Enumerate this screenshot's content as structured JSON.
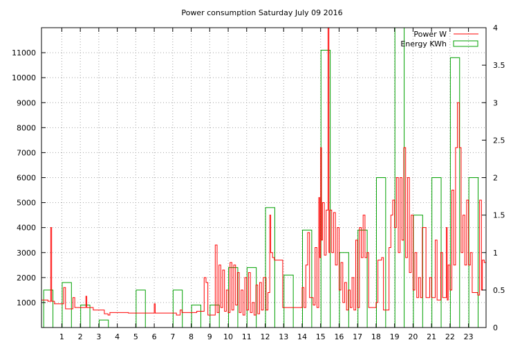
{
  "chart_data": {
    "type": "line",
    "title": "Power consumption Saturday July 09 2016",
    "x": {
      "label": "",
      "range": [
        -0.1,
        23.95
      ],
      "ticks": [
        1,
        2,
        3,
        4,
        5,
        6,
        7,
        8,
        9,
        10,
        11,
        12,
        13,
        14,
        15,
        16,
        17,
        18,
        19,
        20,
        21,
        22,
        23
      ]
    },
    "y_left": {
      "label": "",
      "range": [
        0,
        12000
      ],
      "ticks": [
        1000,
        2000,
        3000,
        4000,
        5000,
        6000,
        7000,
        8000,
        9000,
        10000,
        11000
      ]
    },
    "y_right": {
      "label": "",
      "range": [
        0,
        4
      ],
      "ticks": [
        "0",
        "0.5",
        "1",
        "1.5",
        "2",
        "2.5",
        "3",
        "3.5",
        "4"
      ]
    },
    "grid": true,
    "legend_position": "top-right",
    "series": [
      {
        "name": "Power W",
        "kind": "line",
        "axis": "left",
        "color": "#ff0000",
        "points": [
          [
            -0.1,
            1100
          ],
          [
            0.1,
            1100
          ],
          [
            0.25,
            1050
          ],
          [
            0.4,
            4000
          ],
          [
            0.45,
            1050
          ],
          [
            0.6,
            950
          ],
          [
            1.0,
            950
          ],
          [
            1.1,
            1600
          ],
          [
            1.2,
            750
          ],
          [
            1.5,
            750
          ],
          [
            1.6,
            1200
          ],
          [
            1.7,
            800
          ],
          [
            2.2,
            800
          ],
          [
            2.3,
            1250
          ],
          [
            2.35,
            800
          ],
          [
            2.6,
            800
          ],
          [
            2.7,
            700
          ],
          [
            3.2,
            700
          ],
          [
            3.3,
            550
          ],
          [
            3.5,
            500
          ],
          [
            3.6,
            600
          ],
          [
            4.5,
            600
          ],
          [
            4.6,
            580
          ],
          [
            5.9,
            580
          ],
          [
            6.0,
            950
          ],
          [
            6.05,
            580
          ],
          [
            7.0,
            580
          ],
          [
            7.2,
            500
          ],
          [
            7.4,
            700
          ],
          [
            7.5,
            600
          ],
          [
            8.0,
            600
          ],
          [
            8.3,
            650
          ],
          [
            8.6,
            650
          ],
          [
            8.7,
            2000
          ],
          [
            8.8,
            1800
          ],
          [
            8.9,
            500
          ],
          [
            9.2,
            500
          ],
          [
            9.3,
            3300
          ],
          [
            9.4,
            600
          ],
          [
            9.5,
            2500
          ],
          [
            9.6,
            800
          ],
          [
            9.7,
            2300
          ],
          [
            9.8,
            650
          ],
          [
            9.9,
            1500
          ],
          [
            10.0,
            600
          ],
          [
            10.1,
            2600
          ],
          [
            10.2,
            700
          ],
          [
            10.3,
            2500
          ],
          [
            10.4,
            900
          ],
          [
            10.5,
            2200
          ],
          [
            10.6,
            600
          ],
          [
            10.7,
            1500
          ],
          [
            10.8,
            500
          ],
          [
            10.9,
            2000
          ],
          [
            11.0,
            700
          ],
          [
            11.1,
            2200
          ],
          [
            11.2,
            600
          ],
          [
            11.3,
            1000
          ],
          [
            11.4,
            500
          ],
          [
            11.5,
            1700
          ],
          [
            11.6,
            550
          ],
          [
            11.7,
            1800
          ],
          [
            11.8,
            700
          ],
          [
            11.9,
            2000
          ],
          [
            12.05,
            700
          ],
          [
            12.15,
            1400
          ],
          [
            12.25,
            4500
          ],
          [
            12.3,
            3000
          ],
          [
            12.4,
            2800
          ],
          [
            12.5,
            2700
          ],
          [
            12.9,
            2700
          ],
          [
            12.95,
            800
          ],
          [
            13.9,
            800
          ],
          [
            14.0,
            1600
          ],
          [
            14.1,
            800
          ],
          [
            14.2,
            2500
          ],
          [
            14.3,
            3800
          ],
          [
            14.4,
            1200
          ],
          [
            14.6,
            900
          ],
          [
            14.7,
            3200
          ],
          [
            14.8,
            800
          ],
          [
            14.9,
            5200
          ],
          [
            14.95,
            2800
          ],
          [
            15.0,
            7200
          ],
          [
            15.05,
            3500
          ],
          [
            15.1,
            5000
          ],
          [
            15.2,
            2900
          ],
          [
            15.3,
            4700
          ],
          [
            15.4,
            12000
          ],
          [
            15.45,
            3000
          ],
          [
            15.5,
            4700
          ],
          [
            15.6,
            3000
          ],
          [
            15.7,
            4600
          ],
          [
            15.8,
            2500
          ],
          [
            15.9,
            4000
          ],
          [
            16.0,
            1500
          ],
          [
            16.1,
            2600
          ],
          [
            16.2,
            1000
          ],
          [
            16.3,
            1800
          ],
          [
            16.4,
            700
          ],
          [
            16.5,
            1500
          ],
          [
            16.6,
            800
          ],
          [
            16.7,
            2000
          ],
          [
            16.8,
            700
          ],
          [
            16.9,
            3500
          ],
          [
            17.0,
            800
          ],
          [
            17.1,
            4000
          ],
          [
            17.2,
            2800
          ],
          [
            17.3,
            4500
          ],
          [
            17.4,
            2800
          ],
          [
            17.5,
            3000
          ],
          [
            17.6,
            800
          ],
          [
            17.9,
            800
          ],
          [
            18.0,
            1000
          ],
          [
            18.1,
            2700
          ],
          [
            18.3,
            2800
          ],
          [
            18.4,
            700
          ],
          [
            18.6,
            700
          ],
          [
            18.7,
            3200
          ],
          [
            18.8,
            4500
          ],
          [
            18.9,
            5100
          ],
          [
            19.0,
            4000
          ],
          [
            19.1,
            6000
          ],
          [
            19.2,
            3000
          ],
          [
            19.3,
            6000
          ],
          [
            19.4,
            3500
          ],
          [
            19.5,
            7200
          ],
          [
            19.6,
            2800
          ],
          [
            19.7,
            6000
          ],
          [
            19.8,
            2200
          ],
          [
            19.9,
            4500
          ],
          [
            20.0,
            1500
          ],
          [
            20.1,
            3000
          ],
          [
            20.2,
            1200
          ],
          [
            20.3,
            2000
          ],
          [
            20.4,
            1200
          ],
          [
            20.5,
            4000
          ],
          [
            20.7,
            1200
          ],
          [
            20.9,
            2000
          ],
          [
            21.0,
            1200
          ],
          [
            21.2,
            3500
          ],
          [
            21.3,
            1100
          ],
          [
            21.5,
            3000
          ],
          [
            21.6,
            1200
          ],
          [
            21.8,
            4000
          ],
          [
            21.85,
            1100
          ],
          [
            21.9,
            2500
          ],
          [
            22.0,
            1500
          ],
          [
            22.1,
            5500
          ],
          [
            22.2,
            2500
          ],
          [
            22.3,
            7200
          ],
          [
            22.4,
            9000
          ],
          [
            22.5,
            7200
          ],
          [
            22.6,
            3000
          ],
          [
            22.7,
            4500
          ],
          [
            22.8,
            2500
          ],
          [
            22.9,
            5100
          ],
          [
            23.0,
            2500
          ],
          [
            23.1,
            3000
          ],
          [
            23.2,
            1400
          ],
          [
            23.4,
            1400
          ],
          [
            23.5,
            1300
          ],
          [
            23.6,
            5100
          ],
          [
            23.7,
            1500
          ],
          [
            23.75,
            2700
          ],
          [
            23.85,
            2600
          ],
          [
            23.95,
            1300
          ]
        ]
      },
      {
        "name": "Energy KWh",
        "kind": "bar",
        "axis": "right",
        "color": "#00a000",
        "values": [
          [
            0,
            0.5
          ],
          [
            1,
            0.6
          ],
          [
            2,
            0.3
          ],
          [
            3,
            0.1
          ],
          [
            4,
            0.0
          ],
          [
            5,
            0.5
          ],
          [
            6,
            0.0
          ],
          [
            7,
            0.5
          ],
          [
            8,
            0.3
          ],
          [
            9,
            0.3
          ],
          [
            10,
            0.8
          ],
          [
            11,
            0.8
          ],
          [
            12,
            1.6
          ],
          [
            13,
            0.7
          ],
          [
            14,
            1.3
          ],
          [
            15,
            3.7
          ],
          [
            16,
            1.0
          ],
          [
            17,
            1.3
          ],
          [
            18,
            2.0
          ],
          [
            19,
            4.0
          ],
          [
            20,
            1.5
          ],
          [
            21,
            2.0
          ],
          [
            22,
            3.6
          ],
          [
            23,
            2.0
          ]
        ]
      }
    ]
  }
}
